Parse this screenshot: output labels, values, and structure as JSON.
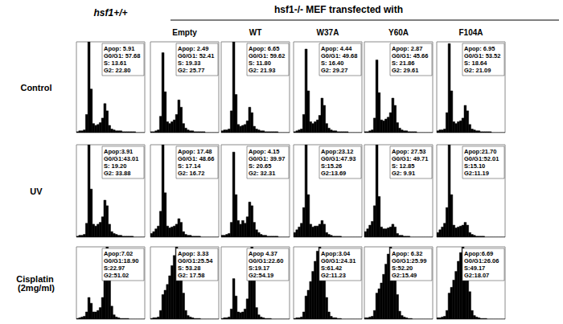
{
  "figure": {
    "first_column_label": "hsf1+/+",
    "group_label": "hsf1-/- MEF transfected with",
    "group_columns": [
      "Empty",
      "WT",
      "W37A",
      "Y60A",
      "F104A"
    ],
    "row_labels": [
      "Control",
      "UV",
      "Cisplatin (2mg/ml)"
    ]
  },
  "chart_data": [
    {
      "type": "histogram",
      "annotations": [
        "Apop: 5.91",
        "G0/G1: 57.68",
        "S: 13.61",
        "G2: 22.80"
      ],
      "bins": [
        0,
        1,
        2,
        3,
        4,
        5,
        6,
        7,
        8,
        9,
        10,
        11,
        12,
        13,
        14,
        15,
        16,
        17,
        18,
        19,
        20,
        21,
        22,
        23,
        24,
        25,
        26,
        27,
        28,
        29,
        30
      ],
      "counts": [
        1,
        2,
        2,
        3,
        20,
        100,
        48,
        10,
        8,
        9,
        11,
        16,
        32,
        24,
        8,
        4,
        3,
        2,
        2,
        2,
        1,
        1,
        1,
        1,
        1,
        1,
        0,
        0,
        0,
        0
      ],
      "xlim": [
        0,
        30
      ],
      "ylim": [
        0,
        100
      ],
      "tick_labels": false,
      "grid": false,
      "color": "#000000"
    },
    {
      "type": "histogram",
      "annotations": [
        "Apop: 2.49",
        "G0/G1: 52.41",
        "S: 19.33",
        "G2: 25.77"
      ],
      "bins": [
        0,
        1,
        2,
        3,
        4,
        5,
        6,
        7,
        8,
        9,
        10,
        11,
        12,
        13,
        14,
        15,
        16,
        17,
        18,
        19,
        20,
        21,
        22,
        23,
        24,
        25,
        26,
        27,
        28,
        29,
        30
      ],
      "counts": [
        1,
        1,
        2,
        3,
        18,
        88,
        45,
        12,
        10,
        12,
        14,
        20,
        36,
        28,
        10,
        5,
        3,
        2,
        2,
        1,
        1,
        1,
        1,
        1,
        0,
        0,
        0,
        0,
        0,
        0
      ],
      "xlim": [
        0,
        30
      ],
      "ylim": [
        0,
        100
      ],
      "tick_labels": false,
      "grid": false,
      "color": "#000000"
    },
    {
      "type": "histogram",
      "annotations": [
        "Apop: 6.65",
        "G0/G1: 59.62",
        "S: 11.80",
        "G2: 21.93"
      ],
      "bins": [
        0,
        1,
        2,
        3,
        4,
        5,
        6,
        7,
        8,
        9,
        10,
        11,
        12,
        13,
        14,
        15,
        16,
        17,
        18,
        19,
        20,
        21,
        22,
        23,
        24,
        25,
        26,
        27,
        28,
        29,
        30
      ],
      "counts": [
        2,
        3,
        3,
        4,
        24,
        100,
        42,
        9,
        7,
        8,
        9,
        13,
        28,
        22,
        7,
        4,
        3,
        2,
        2,
        1,
        1,
        1,
        1,
        1,
        1,
        0,
        0,
        0,
        0,
        0
      ],
      "xlim": [
        0,
        30
      ],
      "ylim": [
        0,
        100
      ],
      "tick_labels": false,
      "grid": false,
      "color": "#000000"
    },
    {
      "type": "histogram",
      "annotations": [
        "Apop: 4.44",
        "G0/G1: 49.68",
        "S: 16.40",
        "G2: 29.27"
      ],
      "bins": [
        0,
        1,
        2,
        3,
        4,
        5,
        6,
        7,
        8,
        9,
        10,
        11,
        12,
        13,
        14,
        15,
        16,
        17,
        18,
        19,
        20,
        21,
        22,
        23,
        24,
        25,
        26,
        27,
        28,
        29,
        30
      ],
      "counts": [
        1,
        2,
        3,
        4,
        20,
        92,
        46,
        12,
        10,
        12,
        14,
        19,
        38,
        30,
        10,
        5,
        3,
        2,
        2,
        1,
        1,
        1,
        1,
        1,
        0,
        0,
        0,
        0,
        0,
        0
      ],
      "xlim": [
        0,
        30
      ],
      "ylim": [
        0,
        100
      ],
      "tick_labels": false,
      "grid": false,
      "color": "#000000"
    },
    {
      "type": "histogram",
      "annotations": [
        "Apop: 2.87",
        "G0/G1: 45.66",
        "S: 21.86",
        "G2: 29.61"
      ],
      "bins": [
        0,
        1,
        2,
        3,
        4,
        5,
        6,
        7,
        8,
        9,
        10,
        11,
        12,
        13,
        14,
        15,
        16,
        17,
        18,
        19,
        20,
        21,
        22,
        23,
        24,
        25,
        26,
        27,
        28,
        29,
        30
      ],
      "counts": [
        1,
        1,
        2,
        3,
        16,
        80,
        44,
        14,
        13,
        15,
        17,
        22,
        38,
        30,
        11,
        5,
        3,
        2,
        2,
        1,
        1,
        1,
        1,
        0,
        0,
        0,
        0,
        0,
        0,
        0
      ],
      "xlim": [
        0,
        30
      ],
      "ylim": [
        0,
        100
      ],
      "tick_labels": false,
      "grid": false,
      "color": "#000000"
    },
    {
      "type": "histogram",
      "annotations": [
        "Apop: 6.95",
        "G0/G1: 53.52",
        "S: 18.64",
        "G2: 21.09"
      ],
      "bins": [
        0,
        1,
        2,
        3,
        4,
        5,
        6,
        7,
        8,
        9,
        10,
        11,
        12,
        13,
        14,
        15,
        16,
        17,
        18,
        19,
        20,
        21,
        22,
        23,
        24,
        25,
        26,
        27,
        28,
        29,
        30
      ],
      "counts": [
        2,
        3,
        3,
        4,
        22,
        98,
        46,
        12,
        10,
        12,
        13,
        16,
        30,
        24,
        9,
        4,
        3,
        2,
        2,
        1,
        1,
        1,
        1,
        1,
        0,
        0,
        0,
        0,
        0,
        0
      ],
      "xlim": [
        0,
        30
      ],
      "ylim": [
        0,
        100
      ],
      "tick_labels": false,
      "grid": false,
      "color": "#000000"
    },
    {
      "type": "histogram",
      "annotations": [
        "Apop:3.91",
        "G0/G1:43.01",
        "S: 19.20",
        "G2: 33.88"
      ],
      "bins": [
        0,
        1,
        2,
        3,
        4,
        5,
        6,
        7,
        8,
        9,
        10,
        11,
        12,
        13,
        14,
        15,
        16,
        17,
        18,
        19,
        20,
        21,
        22,
        23,
        24,
        25,
        26,
        27,
        28,
        29,
        30
      ],
      "counts": [
        1,
        2,
        2,
        3,
        15,
        100,
        52,
        14,
        12,
        14,
        16,
        22,
        40,
        34,
        14,
        6,
        4,
        3,
        2,
        2,
        1,
        1,
        1,
        1,
        1,
        0,
        0,
        0,
        0,
        0
      ],
      "xlim": [
        0,
        30
      ],
      "ylim": [
        0,
        100
      ],
      "tick_labels": false,
      "grid": false,
      "color": "#000000"
    },
    {
      "type": "histogram",
      "annotations": [
        "Apop: 17.48",
        "G0/G1: 48.66",
        "S: 17.14",
        "G2: 16.72"
      ],
      "bins": [
        0,
        1,
        2,
        3,
        4,
        5,
        6,
        7,
        8,
        9,
        10,
        11,
        12,
        13,
        14,
        15,
        16,
        17,
        18,
        19,
        20,
        21,
        22,
        23,
        24,
        25,
        26,
        27,
        28,
        29,
        30
      ],
      "counts": [
        4,
        6,
        9,
        12,
        28,
        100,
        48,
        12,
        10,
        11,
        12,
        14,
        20,
        16,
        6,
        3,
        2,
        2,
        1,
        1,
        1,
        1,
        0,
        0,
        0,
        0,
        0,
        0,
        0,
        0
      ],
      "xlim": [
        0,
        30
      ],
      "ylim": [
        0,
        100
      ],
      "tick_labels": false,
      "grid": false,
      "color": "#000000"
    },
    {
      "type": "histogram",
      "annotations": [
        "Apop: 4.15",
        "G0/G1: 39.97",
        "S: 20.65",
        "G2: 32.31"
      ],
      "bins": [
        0,
        1,
        2,
        3,
        4,
        5,
        6,
        7,
        8,
        9,
        10,
        11,
        12,
        13,
        14,
        15,
        16,
        17,
        18,
        19,
        20,
        21,
        22,
        23,
        24,
        25,
        26,
        27,
        28,
        29,
        30
      ],
      "counts": [
        2,
        2,
        3,
        4,
        16,
        92,
        46,
        18,
        14,
        18,
        15,
        22,
        38,
        34,
        16,
        8,
        5,
        3,
        2,
        2,
        1,
        1,
        1,
        1,
        1,
        0,
        0,
        0,
        0,
        0
      ],
      "xlim": [
        0,
        30
      ],
      "ylim": [
        0,
        100
      ],
      "tick_labels": false,
      "grid": false,
      "color": "#000000"
    },
    {
      "type": "histogram",
      "annotations": [
        "Apop:23.12",
        "G0/G1:47.93",
        "S:15.26",
        "G2:13.69"
      ],
      "bins": [
        0,
        1,
        2,
        3,
        4,
        5,
        6,
        7,
        8,
        9,
        10,
        11,
        12,
        13,
        14,
        15,
        16,
        17,
        18,
        19,
        20,
        21,
        22,
        23,
        24,
        25,
        26,
        27,
        28,
        29,
        30
      ],
      "counts": [
        5,
        8,
        11,
        15,
        32,
        100,
        46,
        14,
        11,
        12,
        12,
        14,
        18,
        14,
        5,
        3,
        2,
        1,
        1,
        1,
        1,
        0,
        0,
        0,
        0,
        0,
        0,
        0,
        0,
        0
      ],
      "xlim": [
        0,
        30
      ],
      "ylim": [
        0,
        100
      ],
      "tick_labels": false,
      "grid": false,
      "color": "#000000"
    },
    {
      "type": "histogram",
      "annotations": [
        "Apop: 27.53",
        "G0/G1: 49.71",
        "S: 12.85",
        "G2: 9.91"
      ],
      "bins": [
        0,
        1,
        2,
        3,
        4,
        5,
        6,
        7,
        8,
        9,
        10,
        11,
        12,
        13,
        14,
        15,
        16,
        17,
        18,
        19,
        20,
        21,
        22,
        23,
        24,
        25,
        26,
        27,
        28,
        29,
        30
      ],
      "counts": [
        6,
        9,
        13,
        17,
        34,
        100,
        44,
        11,
        9,
        9,
        10,
        11,
        14,
        11,
        4,
        2,
        2,
        1,
        1,
        1,
        0,
        0,
        0,
        0,
        0,
        0,
        0,
        0,
        0,
        0
      ],
      "xlim": [
        0,
        30
      ],
      "ylim": [
        0,
        100
      ],
      "tick_labels": false,
      "grid": false,
      "color": "#000000"
    },
    {
      "type": "histogram",
      "annotations": [
        "Apop:21.70",
        "G0/G1:52.01",
        "S:15.10",
        "G2:11.19"
      ],
      "bins": [
        0,
        1,
        2,
        3,
        4,
        5,
        6,
        7,
        8,
        9,
        10,
        11,
        12,
        13,
        14,
        15,
        16,
        17,
        18,
        19,
        20,
        21,
        22,
        23,
        24,
        25,
        26,
        27,
        28,
        29,
        30
      ],
      "counts": [
        5,
        8,
        11,
        15,
        32,
        100,
        46,
        13,
        10,
        11,
        12,
        13,
        16,
        13,
        5,
        3,
        2,
        1,
        1,
        1,
        1,
        0,
        0,
        0,
        0,
        0,
        0,
        0,
        0,
        0
      ],
      "xlim": [
        0,
        30
      ],
      "ylim": [
        0,
        100
      ],
      "tick_labels": false,
      "grid": false,
      "color": "#000000"
    },
    {
      "type": "histogram",
      "annotations": [
        "Apop:7.02",
        "G0/G1:18.90",
        "S:22.97",
        "G2:51.02"
      ],
      "bins": [
        0,
        1,
        2,
        3,
        4,
        5,
        6,
        7,
        8,
        9,
        10,
        11,
        12,
        13,
        14,
        15,
        16,
        17,
        18,
        19,
        20,
        21,
        22,
        23,
        24,
        25,
        26,
        27,
        28,
        29,
        30
      ],
      "counts": [
        1,
        2,
        3,
        4,
        10,
        30,
        22,
        10,
        10,
        12,
        16,
        30,
        70,
        100,
        60,
        18,
        6,
        3,
        2,
        1,
        1,
        1,
        1,
        0,
        0,
        0,
        0,
        0,
        0,
        0
      ],
      "xlim": [
        0,
        30
      ],
      "ylim": [
        0,
        100
      ],
      "tick_labels": false,
      "grid": false,
      "color": "#000000"
    },
    {
      "type": "histogram",
      "annotations": [
        "Apop: 3.33",
        "G0/G1:25.54",
        "S: 53.28",
        "G2: 17.58"
      ],
      "bins": [
        0,
        1,
        2,
        3,
        4,
        5,
        6,
        7,
        8,
        9,
        10,
        11,
        12,
        13,
        14,
        15,
        16,
        17,
        18,
        19,
        20,
        21,
        22,
        23,
        24,
        25,
        26,
        27,
        28,
        29,
        30
      ],
      "counts": [
        1,
        2,
        2,
        3,
        12,
        34,
        40,
        48,
        60,
        74,
        88,
        100,
        92,
        70,
        36,
        12,
        5,
        3,
        2,
        1,
        1,
        1,
        0,
        0,
        0,
        0,
        0,
        0,
        0,
        0
      ],
      "xlim": [
        0,
        30
      ],
      "ylim": [
        0,
        100
      ],
      "tick_labels": false,
      "grid": false,
      "color": "#000000"
    },
    {
      "type": "histogram",
      "annotations": [
        "Apop 4.37",
        "G0/G1:22.60",
        "S:19.17",
        "G2:54.19"
      ],
      "bins": [
        0,
        1,
        2,
        3,
        4,
        5,
        6,
        7,
        8,
        9,
        10,
        11,
        12,
        13,
        14,
        15,
        16,
        17,
        18,
        19,
        20,
        21,
        22,
        23,
        24,
        25,
        26,
        27,
        28,
        29,
        30
      ],
      "counts": [
        1,
        2,
        2,
        3,
        14,
        56,
        32,
        10,
        9,
        10,
        14,
        28,
        72,
        100,
        56,
        16,
        6,
        3,
        2,
        1,
        1,
        1,
        0,
        0,
        0,
        0,
        0,
        0,
        0,
        0
      ],
      "xlim": [
        0,
        30
      ],
      "ylim": [
        0,
        100
      ],
      "tick_labels": false,
      "grid": false,
      "color": "#000000"
    },
    {
      "type": "histogram",
      "annotations": [
        "Apop:3.04",
        "G0/G1:24.31",
        "S:61.42",
        "G2:11.23"
      ],
      "bins": [
        0,
        1,
        2,
        3,
        4,
        5,
        6,
        7,
        8,
        9,
        10,
        11,
        12,
        13,
        14,
        15,
        16,
        17,
        18,
        19,
        20,
        21,
        22,
        23,
        24,
        25,
        26,
        27,
        28,
        29,
        30
      ],
      "counts": [
        1,
        2,
        2,
        3,
        10,
        32,
        40,
        52,
        66,
        80,
        94,
        100,
        88,
        64,
        30,
        10,
        4,
        2,
        2,
        1,
        1,
        0,
        0,
        0,
        0,
        0,
        0,
        0,
        0,
        0
      ],
      "xlim": [
        0,
        30
      ],
      "ylim": [
        0,
        100
      ],
      "tick_labels": false,
      "grid": false,
      "color": "#000000"
    },
    {
      "type": "histogram",
      "annotations": [
        "Apop: 6.32",
        "G0/G1:25.99",
        "S:52.20",
        "G2:15.49"
      ],
      "bins": [
        0,
        1,
        2,
        3,
        4,
        5,
        6,
        7,
        8,
        9,
        10,
        11,
        12,
        13,
        14,
        15,
        16,
        17,
        18,
        19,
        20,
        21,
        22,
        23,
        24,
        25,
        26,
        27,
        28,
        29,
        30
      ],
      "counts": [
        2,
        2,
        3,
        4,
        12,
        36,
        42,
        50,
        62,
        76,
        90,
        100,
        90,
        68,
        34,
        11,
        5,
        3,
        2,
        1,
        1,
        0,
        0,
        0,
        0,
        0,
        0,
        0,
        0,
        0
      ],
      "xlim": [
        0,
        30
      ],
      "ylim": [
        0,
        100
      ],
      "tick_labels": false,
      "grid": false,
      "color": "#000000"
    },
    {
      "type": "histogram",
      "annotations": [
        "Apop:6.69",
        "G0/G1:26.06",
        "S:49.17",
        "G2:18.07"
      ],
      "bins": [
        0,
        1,
        2,
        3,
        4,
        5,
        6,
        7,
        8,
        9,
        10,
        11,
        12,
        13,
        14,
        15,
        16,
        17,
        18,
        19,
        20,
        21,
        22,
        23,
        24,
        25,
        26,
        27,
        28,
        29,
        30
      ],
      "counts": [
        2,
        2,
        3,
        4,
        12,
        36,
        44,
        54,
        66,
        80,
        92,
        100,
        92,
        72,
        38,
        12,
        5,
        3,
        2,
        1,
        1,
        1,
        0,
        0,
        0,
        0,
        0,
        0,
        0,
        0
      ],
      "xlim": [
        0,
        30
      ],
      "ylim": [
        0,
        100
      ],
      "tick_labels": false,
      "grid": false,
      "color": "#000000"
    }
  ]
}
